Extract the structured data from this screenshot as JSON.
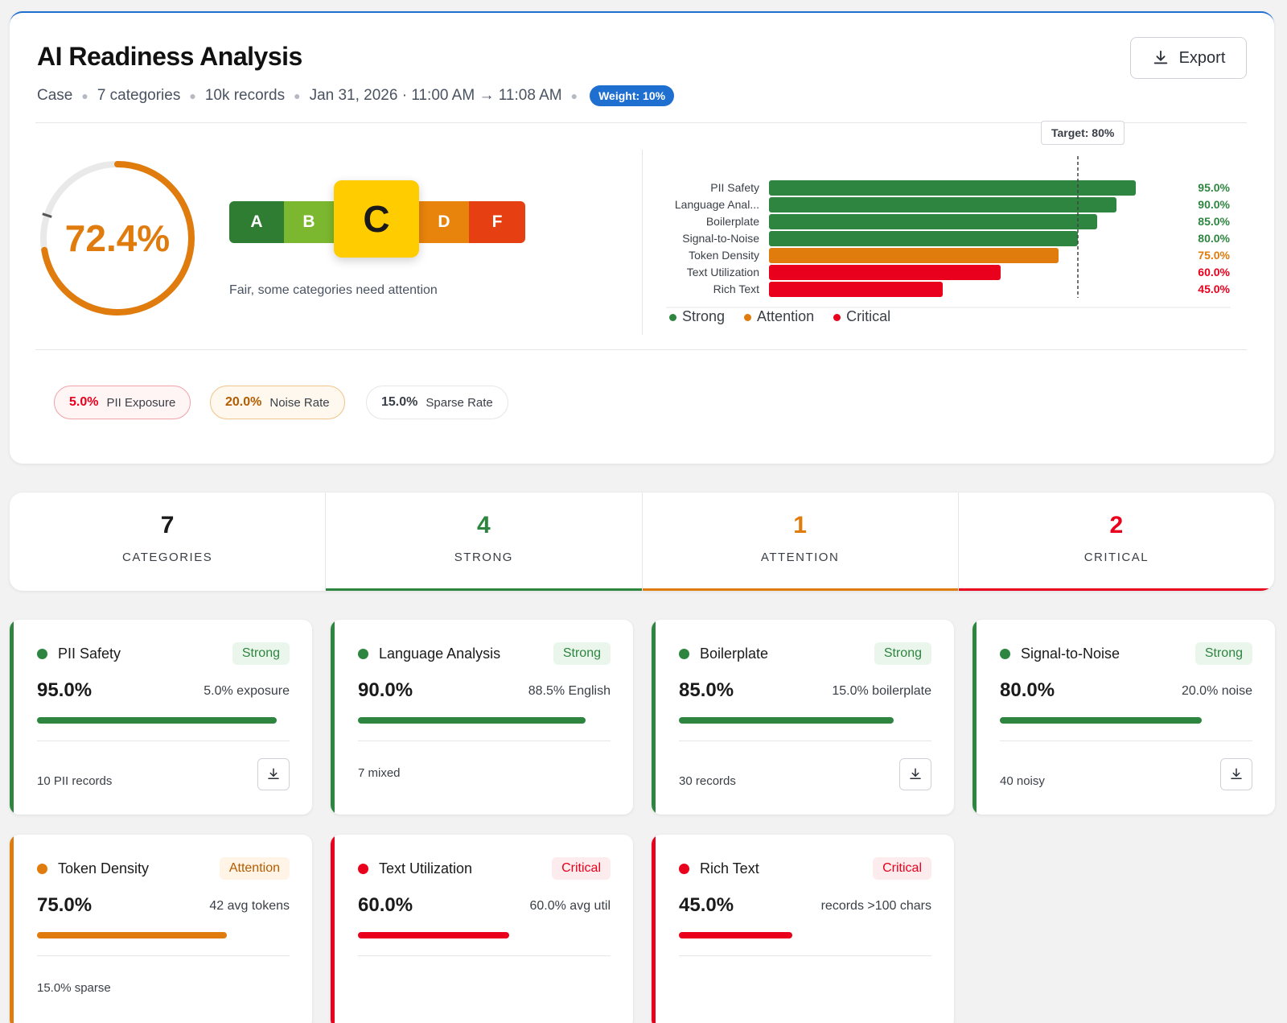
{
  "header": {
    "title": "AI Readiness Analysis",
    "meta": [
      "Case",
      "7 categories",
      "10k records",
      "Jan 31, 2026 · 11:00 AM → 11:08 AM"
    ],
    "weight_badge": "Weight: 10%",
    "export_label": "Export",
    "export_icon": "download-icon"
  },
  "score": {
    "value_label": "72.4%",
    "value": 72.4,
    "target_marker": 80,
    "color": "#e07b0d"
  },
  "grades": {
    "items": [
      "A",
      "B",
      "C",
      "D",
      "F"
    ],
    "active": "C",
    "colors": [
      "#2e7d32",
      "#7cb82f",
      "#ffcc00",
      "#e8830c",
      "#e53f12"
    ],
    "description": "Fair, some categories need attention"
  },
  "chart_data": {
    "type": "bar",
    "orientation": "horizontal",
    "categories": [
      "PII Safety",
      "Language Anal...",
      "Boilerplate",
      "Signal-to-Noise",
      "Token Density",
      "Text Utilization",
      "Rich Text"
    ],
    "values": [
      95.0,
      90.0,
      85.0,
      80.0,
      75.0,
      60.0,
      45.0
    ],
    "value_labels": [
      "95.0%",
      "90.0%",
      "85.0%",
      "80.0%",
      "75.0%",
      "60.0%",
      "45.0%"
    ],
    "statuses": [
      "strong",
      "strong",
      "strong",
      "strong",
      "attention",
      "critical",
      "critical"
    ],
    "xlim": [
      0,
      100
    ],
    "target": 80,
    "target_label": "Target: 80%",
    "legend": [
      {
        "label": "Strong",
        "color": "#2e8540"
      },
      {
        "label": "Attention",
        "color": "#e07b0d"
      },
      {
        "label": "Critical",
        "color": "#e8001c"
      }
    ],
    "legend_position": "bottom-left",
    "colors": {
      "strong": "#2e8540",
      "attention": "#e07b0d",
      "critical": "#e8001c"
    }
  },
  "pills": [
    {
      "value": "5.0%",
      "label": "PII Exposure",
      "value_color": "#e8001c",
      "border": "#f0a3a8",
      "bg": "#fff5f5"
    },
    {
      "value": "20.0%",
      "label": "Noise Rate",
      "value_color": "#b35c00",
      "border": "#f0c48a",
      "bg": "#fff8ee"
    },
    {
      "value": "15.0%",
      "label": "Sparse Rate",
      "value_color": "#1a1a1a",
      "border": "#e4e6ea",
      "bg": "#ffffff"
    }
  ],
  "summary": [
    {
      "count": "7",
      "label": "CATEGORIES",
      "color": "#1a1a1a",
      "line": ""
    },
    {
      "count": "4",
      "label": "STRONG",
      "color": "#2e8540",
      "line": "#2e8540"
    },
    {
      "count": "1",
      "label": "ATTENTION",
      "color": "#e07b0d",
      "line": "#e07b0d"
    },
    {
      "count": "2",
      "label": "CRITICAL",
      "color": "#e8001c",
      "line": "#e8001c"
    }
  ],
  "categories": [
    {
      "name": "PII Safety",
      "status": "Strong",
      "pct": "95.0%",
      "value": 95.0,
      "metric": "5.0% exposure",
      "footer": "10 PII records",
      "download": true
    },
    {
      "name": "Language Analysis",
      "status": "Strong",
      "pct": "90.0%",
      "value": 90.0,
      "metric": "88.5% English",
      "footer": "7 mixed",
      "download": false
    },
    {
      "name": "Boilerplate",
      "status": "Strong",
      "pct": "85.0%",
      "value": 85.0,
      "metric": "15.0% boilerplate",
      "footer": "30 records",
      "download": true
    },
    {
      "name": "Signal-to-Noise",
      "status": "Strong",
      "pct": "80.0%",
      "value": 80.0,
      "metric": "20.0% noise",
      "footer": "40 noisy",
      "download": true
    },
    {
      "name": "Token Density",
      "status": "Attention",
      "pct": "75.0%",
      "value": 75.0,
      "metric": "42 avg tokens",
      "footer": "15.0% sparse",
      "download": false
    },
    {
      "name": "Text Utilization",
      "status": "Critical",
      "pct": "60.0%",
      "value": 60.0,
      "metric": "60.0% avg util",
      "footer": "",
      "download": false
    },
    {
      "name": "Rich Text",
      "status": "Critical",
      "pct": "45.0%",
      "value": 45.0,
      "metric": "records >100 chars",
      "footer": "",
      "download": false
    }
  ],
  "status_styles": {
    "Strong": {
      "color": "#2e8540",
      "badge_bg": "#eaf6ec",
      "badge_fg": "#2e8540"
    },
    "Attention": {
      "color": "#e07b0d",
      "badge_bg": "#fff4e5",
      "badge_fg": "#b35c00"
    },
    "Critical": {
      "color": "#e8001c",
      "badge_bg": "#fdecee",
      "badge_fg": "#e8001c"
    }
  }
}
